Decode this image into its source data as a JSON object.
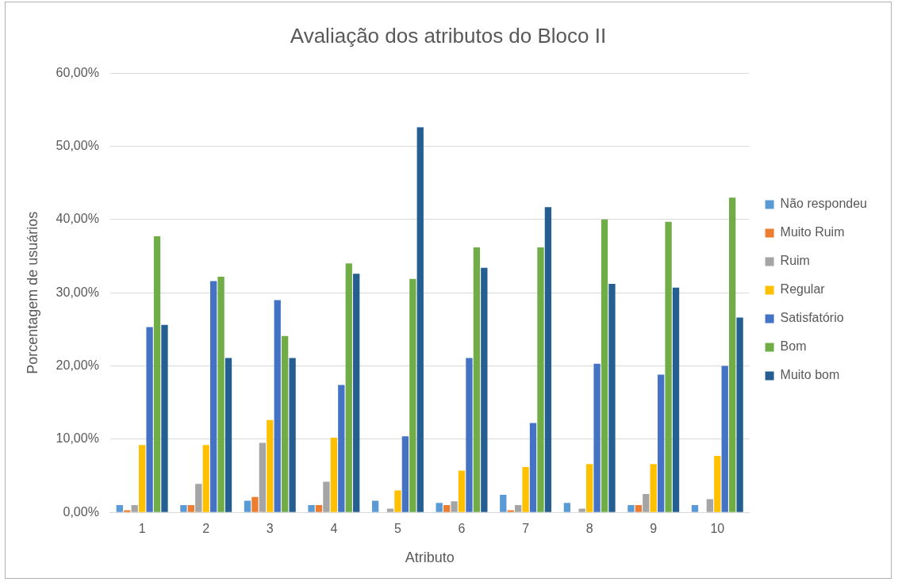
{
  "chart_data": {
    "type": "bar",
    "title": "Avaliação dos atributos do Bloco II",
    "xlabel": "Atributo",
    "ylabel": "Porcentagem de usuários",
    "categories": [
      "1",
      "2",
      "3",
      "4",
      "5",
      "6",
      "7",
      "8",
      "9",
      "10"
    ],
    "series": [
      {
        "name": "Não respondeu",
        "color": "#5b9bd5",
        "values": [
          1.0,
          1.0,
          1.6,
          1.0,
          1.6,
          1.3,
          2.4,
          1.3,
          1.0,
          1.0
        ]
      },
      {
        "name": "Muito Ruim",
        "color": "#ed7d31",
        "values": [
          0.3,
          1.0,
          2.1,
          1.0,
          0,
          1.0,
          0.3,
          0,
          1.0,
          0
        ]
      },
      {
        "name": "Ruim",
        "color": "#a5a5a5",
        "values": [
          1.0,
          3.9,
          9.5,
          4.2,
          0.5,
          1.5,
          1.0,
          0.5,
          2.5,
          1.8
        ]
      },
      {
        "name": "Regular",
        "color": "#ffc000",
        "values": [
          9.2,
          9.2,
          12.6,
          10.2,
          3.0,
          5.7,
          6.2,
          6.6,
          6.6,
          7.7
        ]
      },
      {
        "name": "Satisfatório",
        "color": "#4472c4",
        "values": [
          25.3,
          31.6,
          29.0,
          17.4,
          10.4,
          21.1,
          12.2,
          20.3,
          18.8,
          20.0
        ]
      },
      {
        "name": "Bom",
        "color": "#70ad47",
        "values": [
          37.7,
          32.2,
          24.1,
          34.0,
          31.9,
          36.2,
          36.2,
          40.0,
          39.7,
          43.0
        ]
      },
      {
        "name": "Muito bom",
        "color": "#255e91",
        "values": [
          25.6,
          21.1,
          21.1,
          32.6,
          52.6,
          33.4,
          41.7,
          31.2,
          30.7,
          26.6
        ]
      }
    ],
    "ylim": [
      0,
      60
    ],
    "yticks": [
      {
        "value": 0,
        "label": "0,00%"
      },
      {
        "value": 10,
        "label": "10,00%"
      },
      {
        "value": 20,
        "label": "20,00%"
      },
      {
        "value": 30,
        "label": "30,00%"
      },
      {
        "value": 40,
        "label": "40,00%"
      },
      {
        "value": 50,
        "label": "50,00%"
      },
      {
        "value": 60,
        "label": "60,00%"
      }
    ],
    "grid": "y",
    "legend": "right"
  }
}
